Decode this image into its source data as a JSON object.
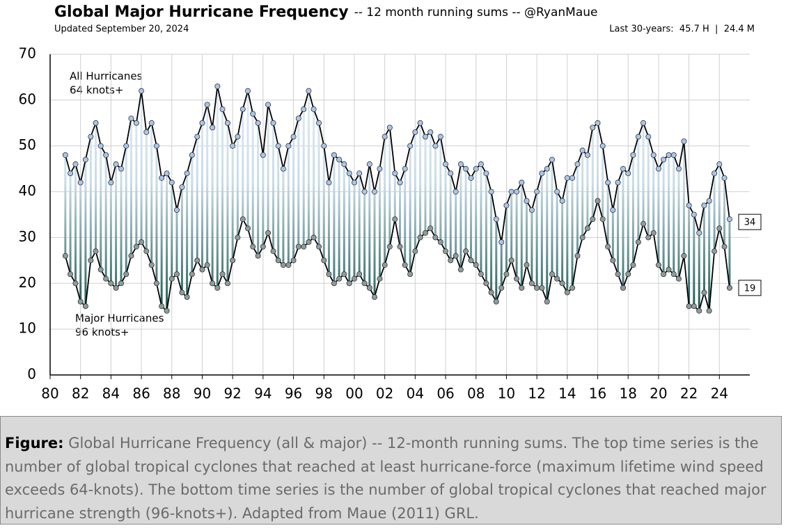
{
  "chart_data": {
    "type": "line",
    "title": "Global Major Hurricane Frequency",
    "subtitle": "-- 12 month running sums -- @RyanMaue",
    "updated": "Updated September 20, 2024",
    "summary": "Last 30-years:  45.7 H  |  24.4 M",
    "xlim": [
      1980,
      2026
    ],
    "xticks": [
      {
        "value": 1980,
        "label": "80"
      },
      {
        "value": 1982,
        "label": "82"
      },
      {
        "value": 1984,
        "label": "84"
      },
      {
        "value": 1986,
        "label": "86"
      },
      {
        "value": 1988,
        "label": "88"
      },
      {
        "value": 1990,
        "label": "90"
      },
      {
        "value": 1992,
        "label": "92"
      },
      {
        "value": 1994,
        "label": "94"
      },
      {
        "value": 1996,
        "label": "96"
      },
      {
        "value": 1998,
        "label": "98"
      },
      {
        "value": 2000,
        "label": "00"
      },
      {
        "value": 2002,
        "label": "02"
      },
      {
        "value": 2004,
        "label": "04"
      },
      {
        "value": 2006,
        "label": "06"
      },
      {
        "value": 2008,
        "label": "08"
      },
      {
        "value": 2010,
        "label": "10"
      },
      {
        "value": 2012,
        "label": "12"
      },
      {
        "value": 2014,
        "label": "14"
      },
      {
        "value": 2016,
        "label": "16"
      },
      {
        "value": 2018,
        "label": "18"
      },
      {
        "value": 2020,
        "label": "20"
      },
      {
        "value": 2022,
        "label": "22"
      },
      {
        "value": 2024,
        "label": "24"
      }
    ],
    "ylim": [
      0,
      70
    ],
    "yticks": [
      0,
      10,
      20,
      30,
      40,
      50,
      60,
      70
    ],
    "grid": true,
    "x": [
      1981,
      1981.33,
      1981.67,
      1982,
      1982.33,
      1982.67,
      1983,
      1983.33,
      1983.67,
      1984,
      1984.33,
      1984.67,
      1985,
      1985.33,
      1985.67,
      1986,
      1986.33,
      1986.67,
      1987,
      1987.33,
      1987.67,
      1988,
      1988.33,
      1988.67,
      1989,
      1989.33,
      1989.67,
      1990,
      1990.33,
      1990.67,
      1991,
      1991.33,
      1991.67,
      1992,
      1992.33,
      1992.67,
      1993,
      1993.33,
      1993.67,
      1994,
      1994.33,
      1994.67,
      1995,
      1995.33,
      1995.67,
      1996,
      1996.33,
      1996.67,
      1997,
      1997.33,
      1997.67,
      1998,
      1998.33,
      1998.67,
      1999,
      1999.33,
      1999.67,
      2000,
      2000.33,
      2000.67,
      2001,
      2001.33,
      2001.67,
      2002,
      2002.33,
      2002.67,
      2003,
      2003.33,
      2003.67,
      2004,
      2004.33,
      2004.67,
      2005,
      2005.33,
      2005.67,
      2006,
      2006.33,
      2006.67,
      2007,
      2007.33,
      2007.67,
      2008,
      2008.33,
      2008.67,
      2009,
      2009.33,
      2009.67,
      2010,
      2010.33,
      2010.67,
      2011,
      2011.33,
      2011.67,
      2012,
      2012.33,
      2012.67,
      2013,
      2013.33,
      2013.67,
      2014,
      2014.33,
      2014.67,
      2015,
      2015.33,
      2015.67,
      2016,
      2016.33,
      2016.67,
      2017,
      2017.33,
      2017.67,
      2018,
      2018.33,
      2018.67,
      2019,
      2019.33,
      2019.67,
      2020,
      2020.33,
      2020.67,
      2021,
      2021.33,
      2021.67,
      2022,
      2022.33,
      2022.67,
      2023,
      2023.33,
      2023.67,
      2024,
      2024.33,
      2024.67
    ],
    "series": [
      {
        "name": "All Hurricanes",
        "note": "64 knots+",
        "color": "#a9c6ec",
        "values": [
          48,
          44,
          46,
          42,
          47,
          52,
          55,
          50,
          48,
          42,
          46,
          45,
          50,
          56,
          55,
          62,
          53,
          55,
          50,
          43,
          44,
          42,
          36,
          41,
          44,
          48,
          52,
          55,
          59,
          54,
          63,
          58,
          55,
          50,
          52,
          58,
          62,
          57,
          55,
          48,
          59,
          55,
          50,
          45,
          50,
          52,
          56,
          58,
          62,
          58,
          55,
          50,
          42,
          48,
          47,
          46,
          44,
          42,
          44,
          40,
          46,
          40,
          45,
          52,
          54,
          44,
          42,
          45,
          50,
          53,
          55,
          52,
          53,
          50,
          52,
          46,
          44,
          40,
          46,
          45,
          43,
          45,
          46,
          44,
          40,
          34,
          29,
          37,
          40,
          40,
          42,
          38,
          36,
          40,
          44,
          45,
          47,
          40,
          38,
          43,
          43,
          46,
          49,
          48,
          54,
          55,
          50,
          42,
          36,
          42,
          45,
          44,
          48,
          52,
          55,
          52,
          48,
          45,
          47,
          48,
          48,
          45,
          51,
          37,
          35,
          31,
          37,
          38,
          44,
          46,
          43,
          34
        ]
      },
      {
        "name": "Major Hurricanes",
        "note": "96 knots+",
        "color": "#8e9c9c",
        "values": [
          26,
          22,
          20,
          16,
          15,
          25,
          27,
          23,
          21,
          20,
          19,
          20,
          22,
          26,
          28,
          29,
          27,
          24,
          20,
          15,
          14,
          21,
          22,
          18,
          17,
          22,
          25,
          23,
          24,
          20,
          19,
          22,
          20,
          25,
          30,
          34,
          32,
          28,
          26,
          28,
          31,
          27,
          25,
          24,
          24,
          25,
          28,
          28,
          29,
          30,
          28,
          25,
          22,
          20,
          21,
          22,
          20,
          21,
          22,
          20,
          19,
          17,
          21,
          24,
          28,
          34,
          28,
          24,
          22,
          27,
          30,
          31,
          32,
          30,
          29,
          27,
          25,
          26,
          23,
          27,
          25,
          24,
          22,
          20,
          18,
          16,
          19,
          22,
          25,
          21,
          19,
          24,
          20,
          19,
          19,
          16,
          22,
          21,
          20,
          18,
          19,
          26,
          30,
          32,
          34,
          38,
          34,
          28,
          25,
          22,
          19,
          22,
          24,
          29,
          33,
          30,
          31,
          24,
          22,
          23,
          22,
          21,
          26,
          15,
          15,
          14,
          18,
          14,
          27,
          32,
          28,
          19
        ]
      }
    ]
  },
  "caption": {
    "label": "Figure:",
    "text": "Global Hurricane Frequency (all & major) -- 12-month running sums. The top time series is the number of global tropical cyclones that reached at least hurricane-force (maximum lifetime wind speed exceeds 64-knots). The bottom time series is the number of global tropical cyclones that reached major hurricane strength (96-knots+). Adapted from Maue (2011) GRL."
  }
}
